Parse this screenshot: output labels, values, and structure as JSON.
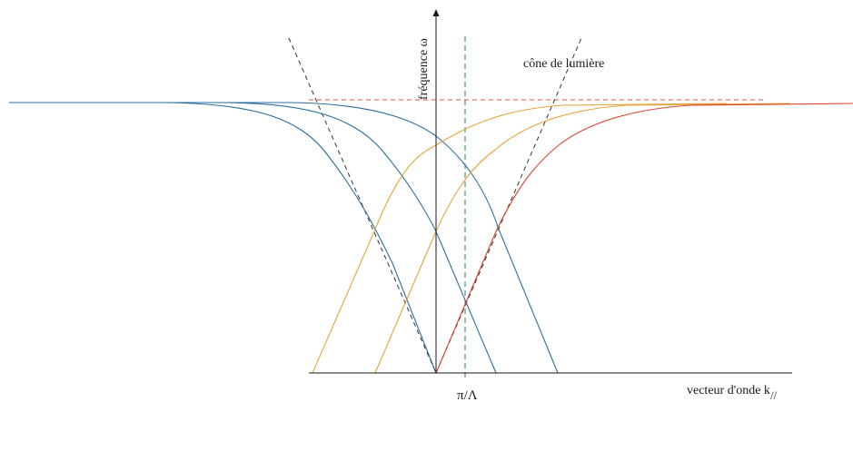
{
  "labels": {
    "y_axis": "fréquence ω",
    "x_axis": "vecteur d'onde k",
    "x_axis_subscript": "//",
    "light_cone": "cône de lumière",
    "tick": "π/Λ"
  },
  "colors": {
    "axis": "#1a1a1a",
    "blue": "#2a6f9e",
    "orange": "#e8a33a",
    "red": "#d9452b",
    "light_cone": "#333333",
    "asymptote": "#e0533a",
    "brillouin": "#1f8a5e"
  }
}
